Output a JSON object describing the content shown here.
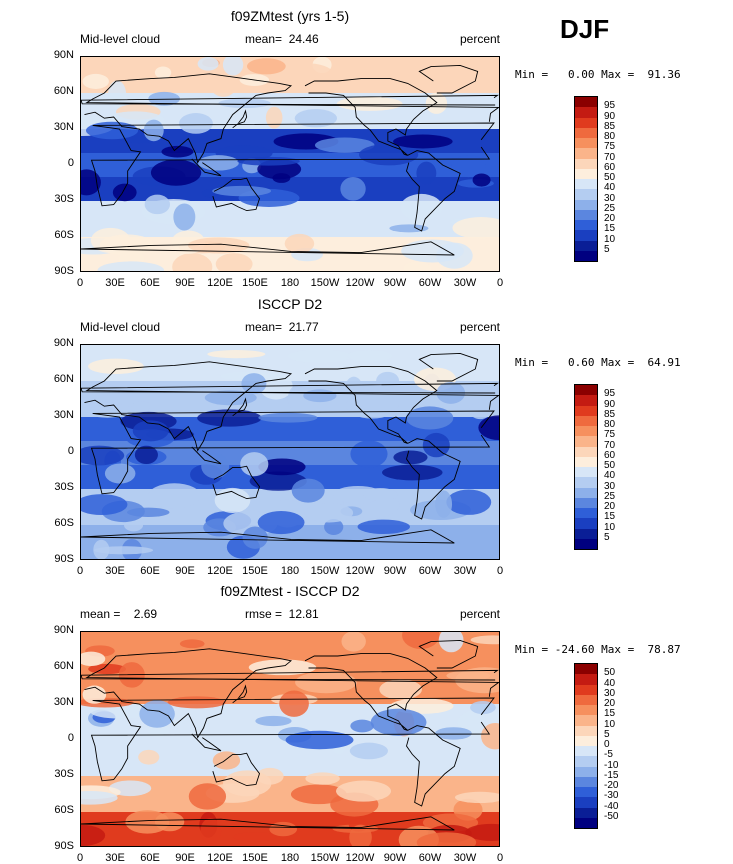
{
  "season": "DJF",
  "lat_labels": [
    "90N",
    "60N",
    "30N",
    "0",
    "30S",
    "60S",
    "90S"
  ],
  "lon_labels": [
    "0",
    "30E",
    "60E",
    "90E",
    "120E",
    "150E",
    "180",
    "150W",
    "120W",
    "90W",
    "60W",
    "30W",
    "0"
  ],
  "panels": [
    {
      "title": "f09ZMtest (yrs 1-5)",
      "left_label": "Mid-level cloud",
      "stat_label": "mean=",
      "stat_value": "24.46",
      "units": "percent",
      "min_max": "Min =   0.00 Max =  91.36",
      "levels": [
        "95",
        "90",
        "85",
        "80",
        "75",
        "70",
        "60",
        "50",
        "40",
        "30",
        "25",
        "20",
        "15",
        "10",
        "5"
      ],
      "colors": [
        "#8b0000",
        "#c41b12",
        "#e03b1e",
        "#ef6a3e",
        "#f6905e",
        "#fab48a",
        "#fcd6ba",
        "#fdeedd",
        "#d7e6f7",
        "#b4cdf1",
        "#8db0ea",
        "#5b86df",
        "#2f5fd8",
        "#1a3fc0",
        "#0a1e96",
        "#000080"
      ]
    },
    {
      "title": "ISCCP D2",
      "left_label": "Mid-level cloud",
      "stat_label": "mean=",
      "stat_value": "21.77",
      "units": "percent",
      "min_max": "Min =   0.60 Max =  64.91",
      "levels": [
        "95",
        "90",
        "85",
        "80",
        "75",
        "70",
        "60",
        "50",
        "40",
        "30",
        "25",
        "20",
        "15",
        "10",
        "5"
      ],
      "colors": [
        "#8b0000",
        "#c41b12",
        "#e03b1e",
        "#ef6a3e",
        "#f6905e",
        "#fab48a",
        "#fcd6ba",
        "#fdeedd",
        "#d7e6f7",
        "#b4cdf1",
        "#8db0ea",
        "#5b86df",
        "#2f5fd8",
        "#1a3fc0",
        "#0a1e96",
        "#000080"
      ]
    },
    {
      "title": "f09ZMtest - ISCCP D2",
      "left_label": "mean =    2.69",
      "stat_label": "rmse =",
      "stat_value": "12.81",
      "units": "percent",
      "min_max": "Min = -24.60 Max =  78.87",
      "levels": [
        "50",
        "40",
        "30",
        "20",
        "15",
        "10",
        "5",
        "0",
        "-5",
        "-10",
        "-15",
        "-20",
        "-30",
        "-40",
        "-50"
      ],
      "colors": [
        "#8b0000",
        "#c41b12",
        "#e03b1e",
        "#ef6a3e",
        "#f6905e",
        "#fab48a",
        "#fcd6ba",
        "#fdeedd",
        "#d7e6f7",
        "#b4cdf1",
        "#8db0ea",
        "#5b86df",
        "#2f5fd8",
        "#1a3fc0",
        "#0a1e96",
        "#000080"
      ]
    }
  ],
  "chart_data": [
    {
      "type": "heatmap",
      "title": "f09ZMtest (yrs 1-5)",
      "variable": "Mid-level cloud",
      "units": "percent",
      "mean": 24.46,
      "min": 0.0,
      "max": 91.36,
      "levels": [
        5,
        10,
        15,
        20,
        25,
        30,
        40,
        50,
        60,
        70,
        75,
        80,
        85,
        90,
        95
      ],
      "x_range": [
        0,
        360
      ],
      "y_range": [
        -90,
        90
      ],
      "zonal_bands": [
        {
          "lat": [
            60,
            90
          ],
          "value": 60
        },
        {
          "lat": [
            30,
            60
          ],
          "value": 45
        },
        {
          "lat": [
            10,
            30
          ],
          "value": 10
        },
        {
          "lat": [
            -10,
            10
          ],
          "value": 15
        },
        {
          "lat": [
            -30,
            -10
          ],
          "value": 10
        },
        {
          "lat": [
            -60,
            -30
          ],
          "value": 40
        },
        {
          "lat": [
            -90,
            -60
          ],
          "value": 55
        }
      ]
    },
    {
      "type": "heatmap",
      "title": "ISCCP D2",
      "variable": "Mid-level cloud",
      "units": "percent",
      "mean": 21.77,
      "min": 0.6,
      "max": 64.91,
      "levels": [
        5,
        10,
        15,
        20,
        25,
        30,
        40,
        50,
        60,
        70,
        75,
        80,
        85,
        90,
        95
      ],
      "x_range": [
        0,
        360
      ],
      "y_range": [
        -90,
        90
      ],
      "zonal_bands": [
        {
          "lat": [
            60,
            90
          ],
          "value": 45
        },
        {
          "lat": [
            30,
            60
          ],
          "value": 35
        },
        {
          "lat": [
            10,
            30
          ],
          "value": 15
        },
        {
          "lat": [
            -10,
            10
          ],
          "value": 20
        },
        {
          "lat": [
            -30,
            -10
          ],
          "value": 15
        },
        {
          "lat": [
            -60,
            -30
          ],
          "value": 30
        },
        {
          "lat": [
            -90,
            -60
          ],
          "value": 25
        }
      ]
    },
    {
      "type": "heatmap",
      "title": "f09ZMtest - ISCCP D2",
      "units": "percent",
      "mean": 2.69,
      "rmse": 12.81,
      "min": -24.6,
      "max": 78.87,
      "levels": [
        -50,
        -40,
        -30,
        -20,
        -15,
        -10,
        -5,
        0,
        5,
        10,
        15,
        20,
        30,
        40,
        50
      ],
      "x_range": [
        0,
        360
      ],
      "y_range": [
        -90,
        90
      ],
      "zonal_bands": [
        {
          "lat": [
            60,
            90
          ],
          "value": 15
        },
        {
          "lat": [
            30,
            60
          ],
          "value": 15
        },
        {
          "lat": [
            10,
            30
          ],
          "value": -5
        },
        {
          "lat": [
            -10,
            10
          ],
          "value": -5
        },
        {
          "lat": [
            -30,
            -10
          ],
          "value": -5
        },
        {
          "lat": [
            -60,
            -30
          ],
          "value": 10
        },
        {
          "lat": [
            -90,
            -60
          ],
          "value": 30
        }
      ]
    }
  ]
}
